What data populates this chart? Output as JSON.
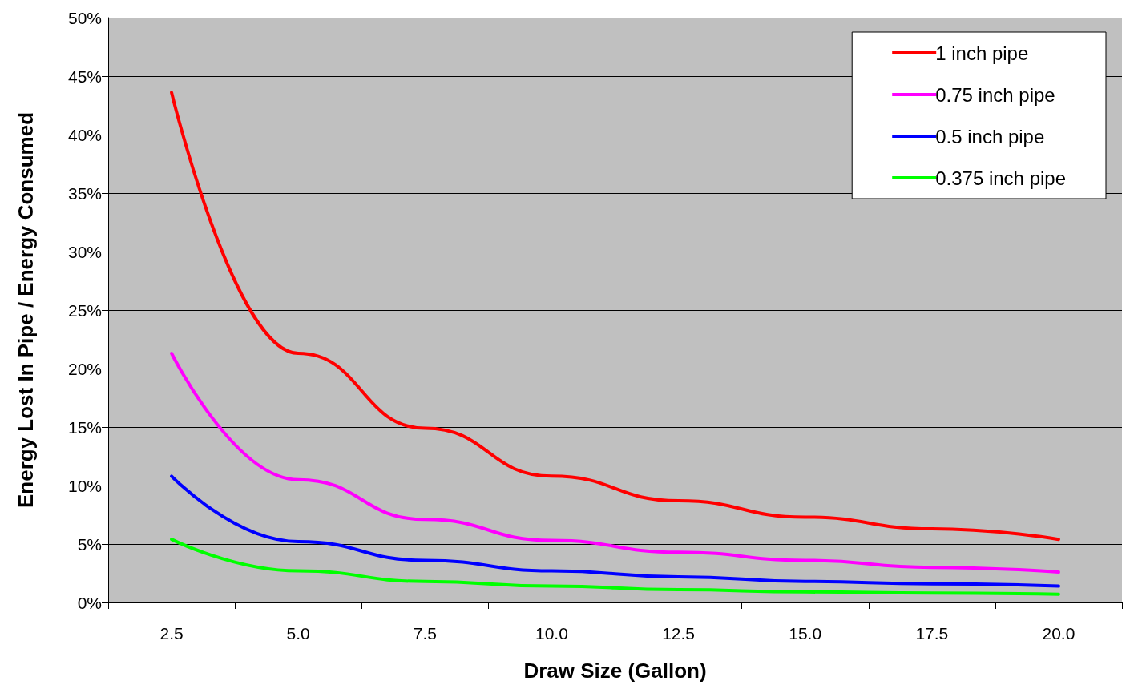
{
  "chart_data": {
    "type": "line",
    "xlabel": "Draw Size (Gallon)",
    "ylabel": "Energy Lost In Pipe / Energy Consumed",
    "categories": [
      "2.5",
      "5.0",
      "7.5",
      "10.0",
      "12.5",
      "15.0",
      "17.5",
      "20.0"
    ],
    "series": [
      {
        "name": "1 inch pipe",
        "color": "#ff0000",
        "values": [
          43.6,
          21.3,
          14.9,
          10.8,
          8.7,
          7.3,
          6.3,
          5.4
        ]
      },
      {
        "name": "0.75 inch pipe",
        "color": "#ff00ff",
        "values": [
          21.3,
          10.5,
          7.1,
          5.3,
          4.3,
          3.6,
          3.0,
          2.6
        ]
      },
      {
        "name": "0.5 inch pipe",
        "color": "#0000ff",
        "values": [
          10.8,
          5.2,
          3.6,
          2.7,
          2.2,
          1.8,
          1.6,
          1.4
        ]
      },
      {
        "name": "0.375 inch pipe",
        "color": "#00ff00",
        "values": [
          5.4,
          2.7,
          1.8,
          1.4,
          1.1,
          0.9,
          0.8,
          0.7
        ]
      }
    ],
    "ylim": [
      0,
      50
    ],
    "yticks": [
      {
        "value": 0,
        "label": "0%"
      },
      {
        "value": 5,
        "label": "5%"
      },
      {
        "value": 10,
        "label": "10%"
      },
      {
        "value": 15,
        "label": "15%"
      },
      {
        "value": 20,
        "label": "20%"
      },
      {
        "value": 25,
        "label": "25%"
      },
      {
        "value": 30,
        "label": "30%"
      },
      {
        "value": 35,
        "label": "35%"
      },
      {
        "value": 40,
        "label": "40%"
      },
      {
        "value": 45,
        "label": "45%"
      },
      {
        "value": 50,
        "label": "50%"
      }
    ],
    "grid": "y",
    "legend": "top right",
    "marker": "none",
    "line_style": "solid"
  }
}
